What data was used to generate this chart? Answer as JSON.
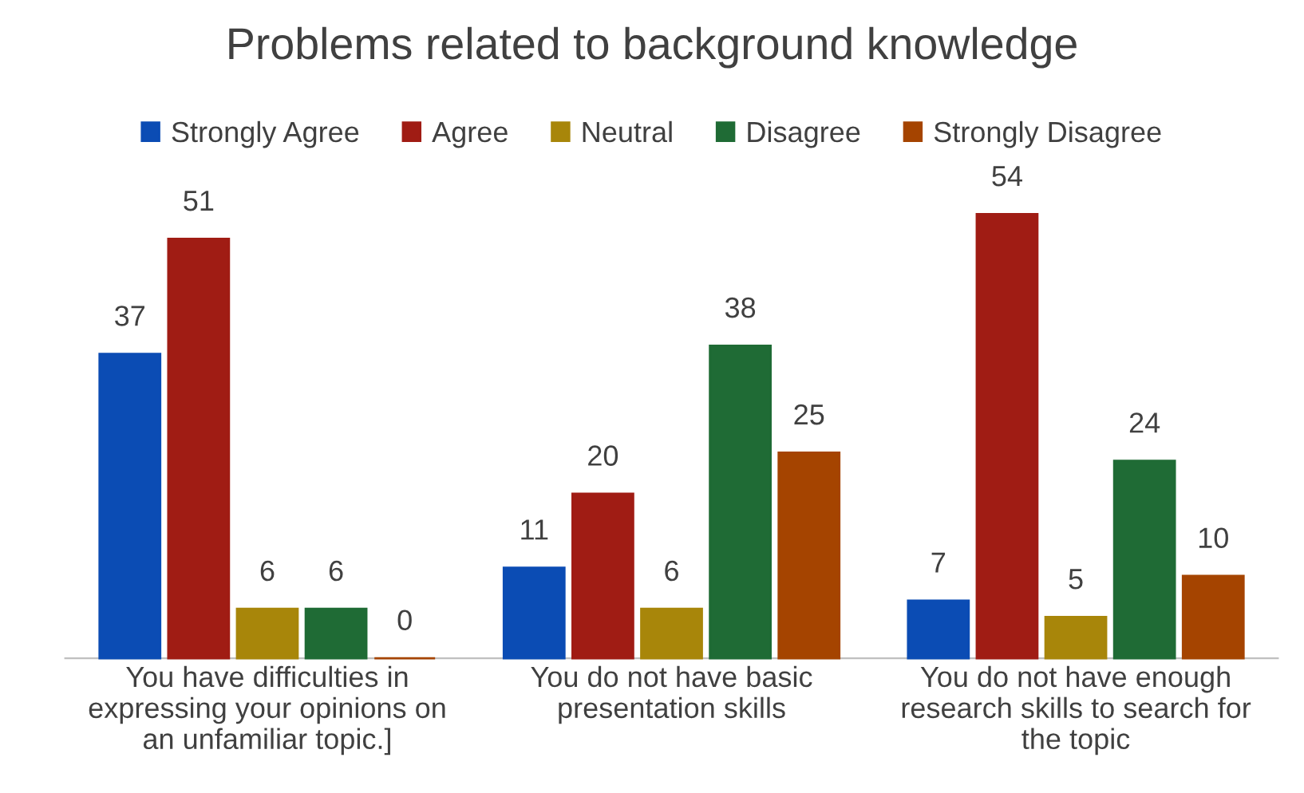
{
  "chart_data": {
    "type": "bar",
    "title": "Problems related to background knowledge",
    "categories": [
      "You have difficulties in\nexpressing your opinions on\nan unfamiliar topic.]",
      "You do not have basic\npresentation skills",
      "You do not have enough\nresearch skills to search for\nthe topic"
    ],
    "series": [
      {
        "name": "Strongly Agree",
        "color": "#0b4cb4",
        "values": [
          37,
          11,
          7
        ]
      },
      {
        "name": "Agree",
        "color": "#a01c14",
        "values": [
          51,
          20,
          54
        ]
      },
      {
        "name": "Neutral",
        "color": "#a8860a",
        "values": [
          6,
          6,
          5
        ]
      },
      {
        "name": "Disagree",
        "color": "#1f6b35",
        "values": [
          6,
          38,
          24
        ]
      },
      {
        "name": "Strongly Disagree",
        "color": "#a54400",
        "values": [
          0,
          25,
          10
        ]
      }
    ],
    "data_labels": true,
    "legend": "top",
    "grid": false,
    "tick_labels": "x"
  }
}
